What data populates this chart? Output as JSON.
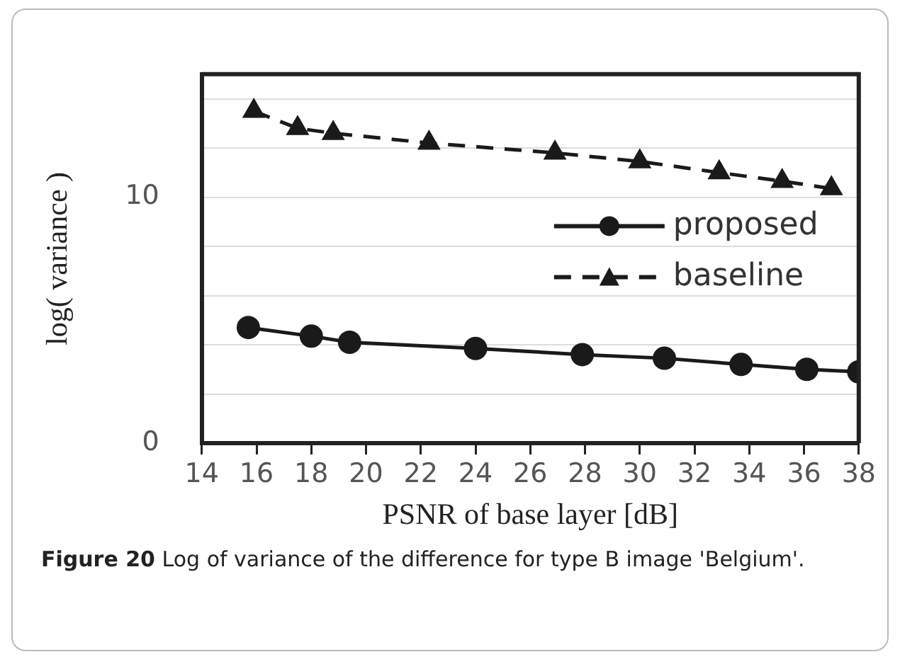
{
  "chart_data": {
    "type": "line",
    "xlabel": "PSNR of base layer [dB]",
    "ylabel": "log( variance )",
    "xlim": [
      14,
      38
    ],
    "xticks": [
      14,
      16,
      18,
      20,
      22,
      24,
      26,
      28,
      30,
      32,
      34,
      36,
      38
    ],
    "ylim": [
      0,
      15
    ],
    "yticks": [
      0,
      {
        "value": 2,
        "label": null
      },
      {
        "value": 4,
        "label": null
      },
      {
        "value": 6,
        "label": null
      },
      {
        "value": 8,
        "label": null
      },
      10,
      {
        "value": 12,
        "label": null
      },
      {
        "value": 14,
        "label": null
      }
    ],
    "grid": "y",
    "legend": "right",
    "series": [
      {
        "name": "proposed",
        "color": "#1a1a1a",
        "marker": "circle",
        "line_style": "solid",
        "x": [
          15.7,
          18.0,
          19.4,
          24.0,
          27.9,
          30.9,
          33.7,
          36.1,
          38.0
        ],
        "values": [
          4.7,
          4.35,
          4.1,
          3.85,
          3.6,
          3.45,
          3.2,
          3.0,
          2.9
        ]
      },
      {
        "name": "baseline",
        "color": "#1a1a1a",
        "marker": "triangle",
        "line_style": "dashed",
        "x": [
          15.9,
          17.5,
          18.8,
          22.3,
          26.9,
          30.0,
          32.9,
          35.2,
          37.0
        ],
        "values": [
          13.5,
          12.8,
          12.6,
          12.2,
          11.8,
          11.45,
          11.0,
          10.65,
          10.35
        ]
      }
    ],
    "annotations": [
      "Figure 20 Log of variance of the difference for type B image 'Belgium'."
    ]
  }
}
